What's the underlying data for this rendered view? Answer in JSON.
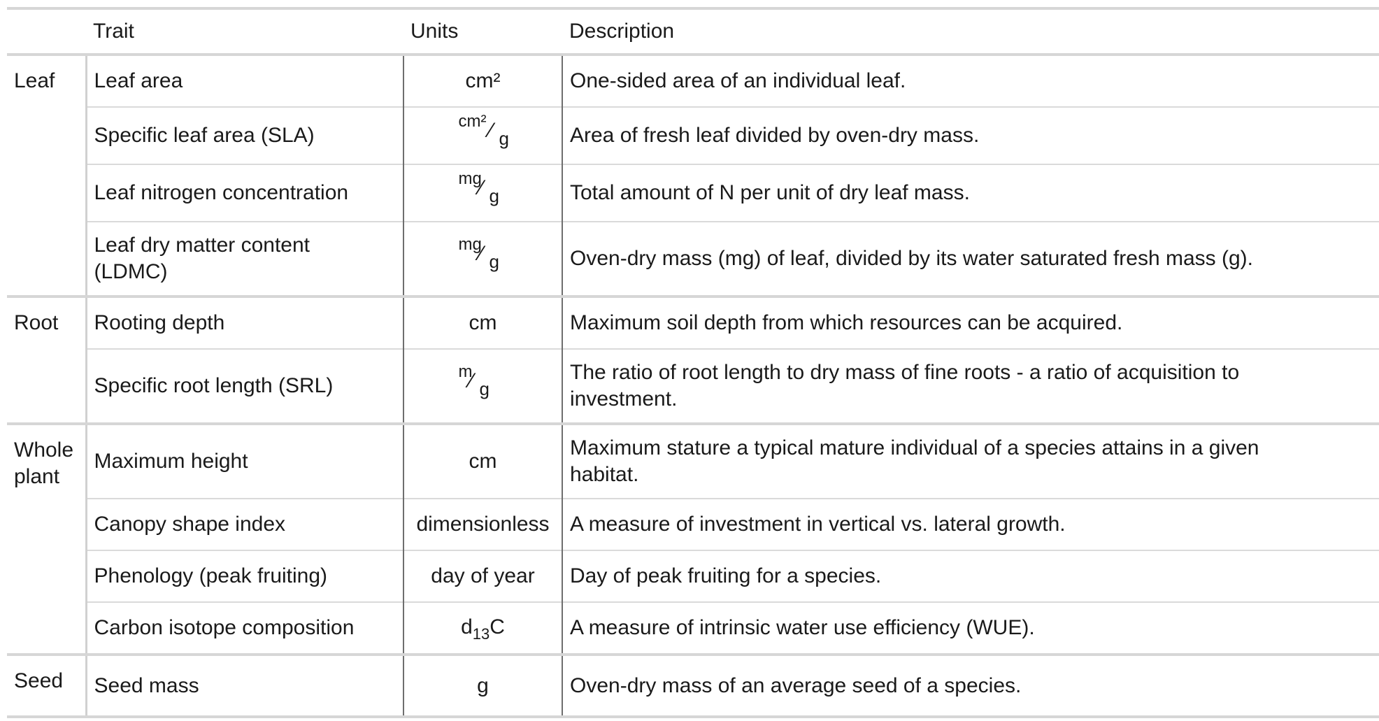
{
  "header": {
    "trait": "Trait",
    "units": "Units",
    "description": "Description"
  },
  "groups": [
    {
      "name": "Leaf",
      "rows": [
        {
          "trait": "Leaf area",
          "unit": "cm²",
          "desc": "One-sided area of an individual leaf."
        },
        {
          "trait": "Specific leaf area (SLA)",
          "unit_num": "cm²",
          "unit_den": "g",
          "desc": "Area of fresh leaf divided by oven-dry mass."
        },
        {
          "trait": "Leaf nitrogen concentration",
          "unit_num": "mg",
          "unit_den": "g",
          "desc": "Total amount of N per unit of dry leaf mass."
        },
        {
          "trait_line1": "Leaf dry matter content",
          "trait_line2": "(LDMC)",
          "unit_num": "mg",
          "unit_den": "g",
          "desc": "Oven-dry mass (mg) of leaf, divided by its water saturated fresh mass (g)."
        }
      ]
    },
    {
      "name": "Root",
      "rows": [
        {
          "trait": "Rooting depth",
          "unit": "cm",
          "desc": "Maximum soil depth from which resources can be acquired."
        },
        {
          "trait": "Specific root length (SRL)",
          "unit_num": "m",
          "unit_den": "g",
          "desc_line1": "The ratio of root length to dry mass of fine roots - a ratio of acquisition to",
          "desc_line2": "investment."
        }
      ]
    },
    {
      "name_line1": "Whole",
      "name_line2": "plant",
      "rows": [
        {
          "trait": "Maximum height",
          "unit": "cm",
          "desc_line1": "Maximum stature a typical mature individual of a species attains in a given",
          "desc_line2": "habitat."
        },
        {
          "trait": "Canopy shape index",
          "unit": "dimensionless",
          "desc": "A measure of investment in vertical vs. lateral growth."
        },
        {
          "trait": "Phenology (peak fruiting)",
          "unit": "day of year",
          "desc": "Day of peak fruiting for a species."
        },
        {
          "trait": "Carbon isotope composition",
          "unit_main": "d",
          "unit_sub": "13",
          "unit_tail": "C",
          "desc": "A measure of intrinsic water use efficiency (WUE)."
        }
      ]
    },
    {
      "name": "Seed",
      "rows": [
        {
          "trait": "Seed mass",
          "unit": "g",
          "desc": "Oven-dry mass of an average seed of a species."
        }
      ]
    }
  ]
}
